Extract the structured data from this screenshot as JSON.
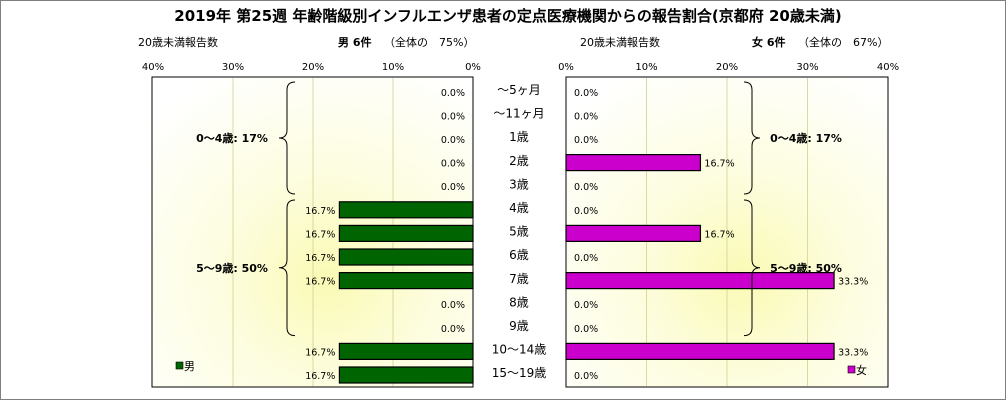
{
  "chart_data": {
    "type": "bar",
    "title": "2019年 第25週 年齢階級別インフルエンザ患者の定点医療機関からの報告割合(京都府 20歳未満)",
    "categories": [
      "〜5ヶ月",
      "〜11ヶ月",
      "1歳",
      "2歳",
      "3歳",
      "4歳",
      "5歳",
      "6歳",
      "7歳",
      "8歳",
      "9歳",
      "10〜14歳",
      "15〜19歳"
    ],
    "xlim": [
      0,
      40
    ],
    "x_ticks": [
      "0%",
      "10%",
      "20%",
      "30%",
      "40%"
    ],
    "left_ticks": [
      "40%",
      "30%",
      "20%",
      "10%",
      "0%"
    ],
    "right_ticks": [
      "0%",
      "10%",
      "20%",
      "30%",
      "40%"
    ],
    "series": [
      {
        "name": "男",
        "color": "#006400",
        "header_left": "20歳未満報告数",
        "header_count": "男 6件",
        "header_pct": "（全体の　75%）",
        "values": [
          0.0,
          0.0,
          0.0,
          0.0,
          0.0,
          16.7,
          16.7,
          16.7,
          16.7,
          0.0,
          0.0,
          16.7,
          16.7
        ],
        "labels": [
          "0.0%",
          "0.0%",
          "0.0%",
          "0.0%",
          "0.0%",
          "16.7%",
          "16.7%",
          "16.7%",
          "16.7%",
          "0.0%",
          "0.0%",
          "16.7%",
          "16.7%"
        ],
        "groups": [
          {
            "label": "0〜4歳: 17%",
            "from": 0,
            "to": 4
          },
          {
            "label": "5〜9歳: 50%",
            "from": 5,
            "to": 10
          }
        ]
      },
      {
        "name": "女",
        "color": "#cc00cc",
        "header_left": "20歳未満報告数",
        "header_count": "女 6件",
        "header_pct": "（全体の　67%）",
        "values": [
          0.0,
          0.0,
          0.0,
          16.7,
          0.0,
          0.0,
          16.7,
          0.0,
          33.3,
          0.0,
          0.0,
          33.3,
          0.0
        ],
        "labels": [
          "0.0%",
          "0.0%",
          "0.0%",
          "16.7%",
          "0.0%",
          "0.0%",
          "16.7%",
          "0.0%",
          "33.3%",
          "0.0%",
          "0.0%",
          "33.3%",
          "0.0%"
        ],
        "groups": [
          {
            "label": "0〜4歳: 17%",
            "from": 0,
            "to": 4
          },
          {
            "label": "5〜9歳: 50%",
            "from": 5,
            "to": 10
          }
        ]
      }
    ],
    "background": "radial gradient white to light yellow",
    "legend_placement": "bottom-left / bottom-right"
  }
}
